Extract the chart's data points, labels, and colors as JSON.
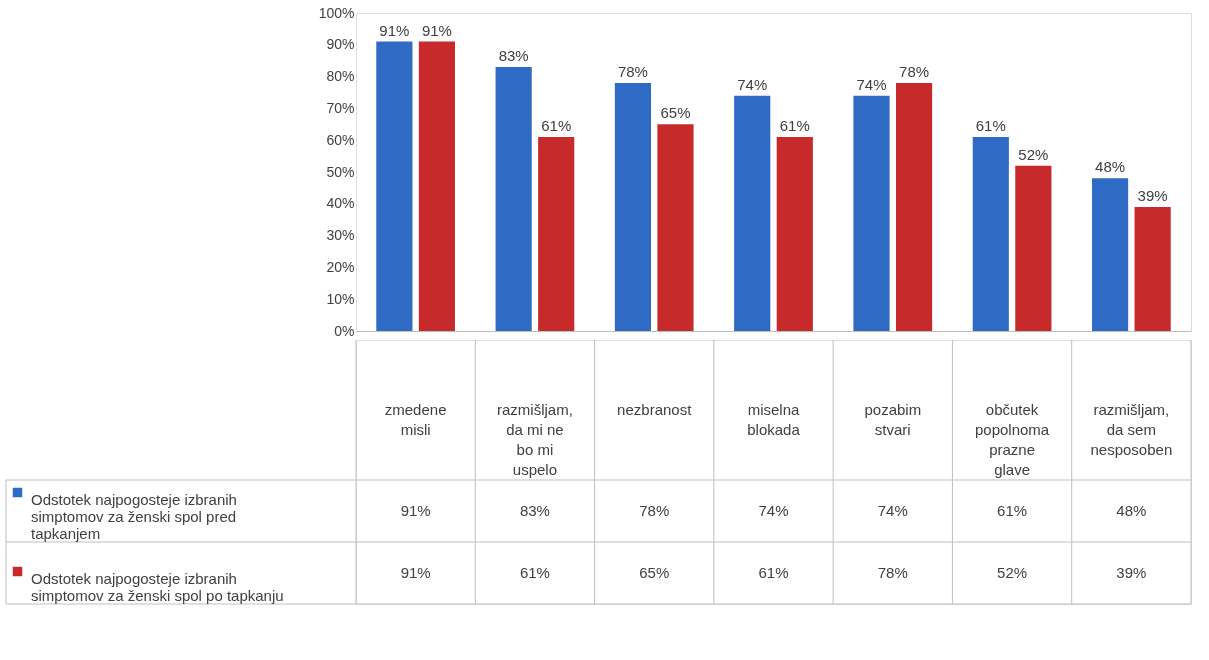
{
  "chart_data": {
    "type": "bar",
    "categories": [
      "zmedene misli",
      "razmišljam, da mi ne bo mi uspelo",
      "nezbranost",
      "miselna blokada",
      "pozabim stvari",
      "občutek popolnoma prazne glave",
      "razmišljam, da sem nesposoben"
    ],
    "series": [
      {
        "name": "Odstotek najpogosteje izbranih simptomov za ženski spol pred tapkanjem",
        "color": "#2f6bc4",
        "values": [
          91,
          83,
          78,
          74,
          74,
          61,
          48
        ],
        "value_labels": [
          "91%",
          "83%",
          "78%",
          "74%",
          "74%",
          "61%",
          "48%"
        ]
      },
      {
        "name": "Odstotek najpogosteje izbranih simptomov za ženski spol po tapkanju",
        "color": "#c62a2a",
        "values": [
          91,
          61,
          65,
          61,
          78,
          52,
          39
        ],
        "value_labels": [
          "91%",
          "61%",
          "65%",
          "61%",
          "78%",
          "52%",
          "39%"
        ]
      }
    ],
    "ylim": [
      0,
      100
    ],
    "yticks": [
      {
        "value": 0,
        "label": "0%"
      },
      {
        "value": 10,
        "label": "10%"
      },
      {
        "value": 20,
        "label": "20%"
      },
      {
        "value": 30,
        "label": "30%"
      },
      {
        "value": 40,
        "label": "40%"
      },
      {
        "value": 50,
        "label": "50%"
      },
      {
        "value": 60,
        "label": "60%"
      },
      {
        "value": 70,
        "label": "70%"
      },
      {
        "value": 80,
        "label": "80%"
      },
      {
        "value": 90,
        "label": "90%"
      },
      {
        "value": 100,
        "label": "100%"
      }
    ],
    "legend": "bottom left"
  }
}
